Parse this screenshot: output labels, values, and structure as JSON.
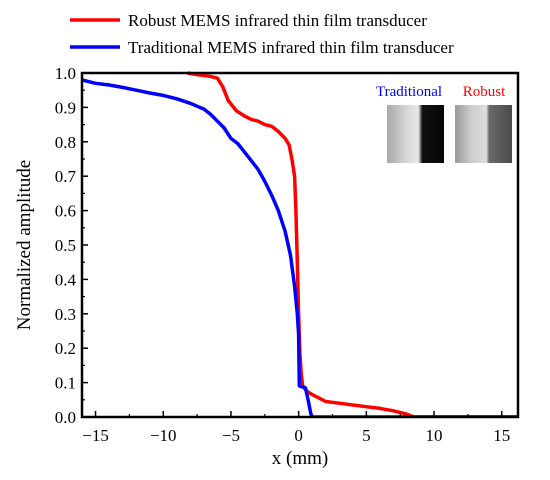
{
  "chart_data": {
    "type": "line",
    "title": "",
    "xlabel": "x (mm)",
    "ylabel": "Normalized amplitude",
    "xlim": [
      -16,
      16.2
    ],
    "ylim": [
      0,
      1
    ],
    "xticks": [
      -15,
      -10,
      -5,
      0,
      5,
      10,
      15
    ],
    "yticks": [
      0.0,
      0.1,
      0.2,
      0.3,
      0.4,
      0.5,
      0.6,
      0.7,
      0.8,
      0.9,
      1.0
    ],
    "xtick_labels": [
      "−15",
      "−10",
      "−5",
      "0",
      "5",
      "10",
      "15"
    ],
    "ytick_labels": [
      "0.0",
      "0.1",
      "0.2",
      "0.3",
      "0.4",
      "0.5",
      "0.6",
      "0.7",
      "0.8",
      "0.9",
      "1.0"
    ],
    "grid": false,
    "legend_position": "top",
    "series": [
      {
        "name": "Robust MEMS infrared thin film transducer",
        "color": "#ff0000",
        "points": [
          [
            -8.2,
            1.0
          ],
          [
            -7.5,
            0.995
          ],
          [
            -6.5,
            0.99
          ],
          [
            -6.0,
            0.985
          ],
          [
            -5.6,
            0.96
          ],
          [
            -5.2,
            0.92
          ],
          [
            -4.6,
            0.89
          ],
          [
            -4.0,
            0.875
          ],
          [
            -3.5,
            0.865
          ],
          [
            -3.0,
            0.86
          ],
          [
            -2.5,
            0.85
          ],
          [
            -2.0,
            0.845
          ],
          [
            -1.5,
            0.83
          ],
          [
            -1.0,
            0.81
          ],
          [
            -0.7,
            0.79
          ],
          [
            -0.5,
            0.75
          ],
          [
            -0.3,
            0.7
          ],
          [
            -0.2,
            0.6
          ],
          [
            -0.1,
            0.45
          ],
          [
            0.0,
            0.3
          ],
          [
            0.1,
            0.18
          ],
          [
            0.2,
            0.12
          ],
          [
            0.3,
            0.09
          ],
          [
            0.6,
            0.075
          ],
          [
            1.0,
            0.065
          ],
          [
            1.5,
            0.055
          ],
          [
            2.0,
            0.045
          ],
          [
            3.0,
            0.04
          ],
          [
            4.0,
            0.035
          ],
          [
            5.0,
            0.03
          ],
          [
            6.0,
            0.025
          ],
          [
            7.0,
            0.018
          ],
          [
            8.0,
            0.008
          ],
          [
            8.5,
            0.0
          ],
          [
            16.2,
            0.0
          ]
        ]
      },
      {
        "name": "Traditional MEMS infrared thin film transducer",
        "color": "#0000ff",
        "points": [
          [
            -16.0,
            0.98
          ],
          [
            -15.0,
            0.97
          ],
          [
            -14.0,
            0.965
          ],
          [
            -13.0,
            0.958
          ],
          [
            -12.0,
            0.95
          ],
          [
            -11.0,
            0.942
          ],
          [
            -10.0,
            0.935
          ],
          [
            -9.0,
            0.925
          ],
          [
            -8.0,
            0.912
          ],
          [
            -7.0,
            0.895
          ],
          [
            -6.5,
            0.88
          ],
          [
            -6.0,
            0.86
          ],
          [
            -5.5,
            0.84
          ],
          [
            -5.0,
            0.81
          ],
          [
            -4.5,
            0.795
          ],
          [
            -4.0,
            0.77
          ],
          [
            -3.5,
            0.745
          ],
          [
            -3.0,
            0.72
          ],
          [
            -2.5,
            0.685
          ],
          [
            -2.0,
            0.645
          ],
          [
            -1.5,
            0.6
          ],
          [
            -1.0,
            0.54
          ],
          [
            -0.6,
            0.47
          ],
          [
            -0.3,
            0.38
          ],
          [
            -0.1,
            0.3
          ],
          [
            0.0,
            0.24
          ],
          [
            0.05,
            0.09
          ],
          [
            0.5,
            0.085
          ],
          [
            0.7,
            0.05
          ],
          [
            0.9,
            0.01
          ],
          [
            1.0,
            0.0
          ],
          [
            16.2,
            0.0
          ]
        ]
      }
    ],
    "inset_labels": [
      {
        "text": "Traditional",
        "color": "#0000ff"
      },
      {
        "text": "Robust",
        "color": "#ff0000"
      }
    ]
  }
}
